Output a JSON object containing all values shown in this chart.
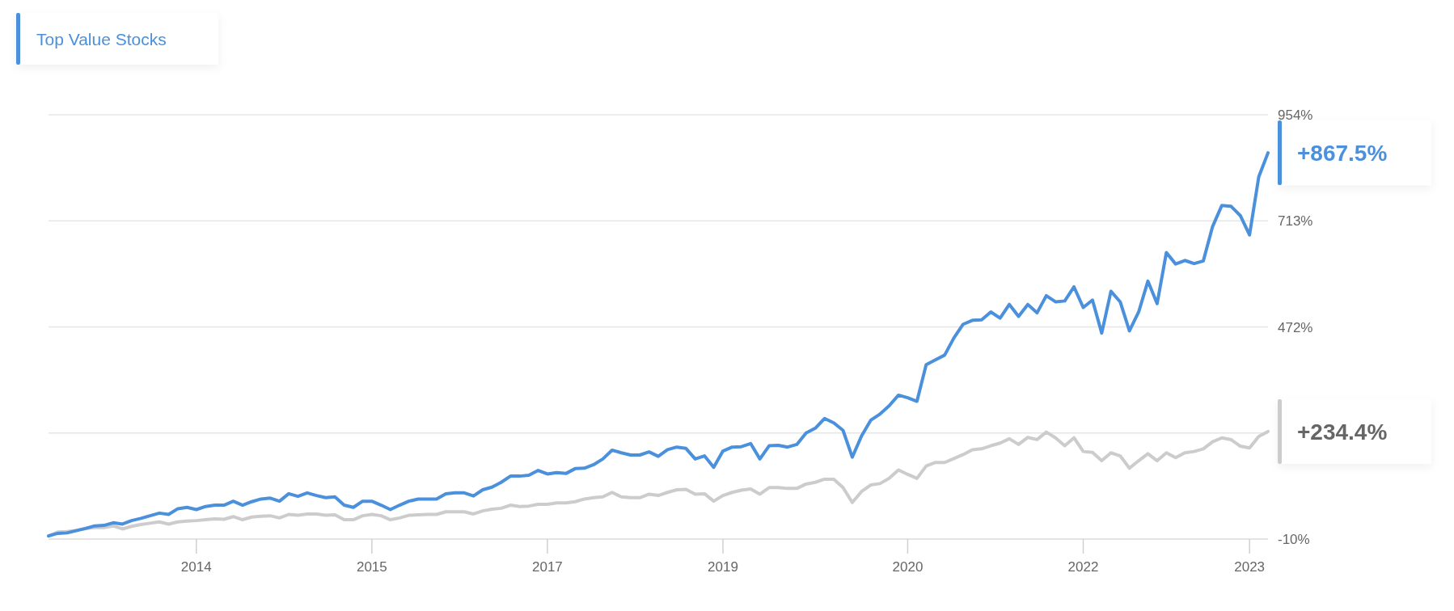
{
  "chart_data": {
    "type": "line",
    "categories": [
      null,
      null,
      null,
      null,
      null,
      null,
      null,
      null,
      null,
      null,
      null,
      null,
      null,
      null,
      null,
      null,
      "2014",
      null,
      null,
      null,
      null,
      null,
      null,
      null,
      null,
      null,
      null,
      null,
      null,
      null,
      null,
      null,
      null,
      null,
      null,
      "2015",
      null,
      null,
      null,
      null,
      null,
      null,
      null,
      null,
      null,
      null,
      null,
      null,
      null,
      null,
      null,
      null,
      null,
      null,
      "2017",
      null,
      null,
      null,
      null,
      null,
      null,
      null,
      null,
      null,
      null,
      null,
      null,
      null,
      null,
      null,
      null,
      null,
      null,
      "2019",
      null,
      null,
      null,
      null,
      null,
      null,
      null,
      null,
      null,
      null,
      null,
      null,
      null,
      null,
      null,
      null,
      null,
      null,
      null,
      "2020",
      null,
      null,
      null,
      null,
      null,
      null,
      null,
      null,
      null,
      null,
      null,
      null,
      null,
      null,
      null,
      null,
      null,
      null,
      "2022",
      null,
      null,
      null,
      null,
      null,
      null,
      null,
      null,
      null,
      null,
      null,
      null,
      null,
      null,
      null,
      null,
      null,
      "2023",
      null,
      null
    ],
    "series": [
      {
        "color": "#cccccc",
        "values": [
          -3,
          6,
          7,
          10,
          14,
          16,
          16,
          20,
          13,
          19,
          23,
          26,
          29,
          24,
          29,
          31,
          32,
          34,
          36,
          35,
          41,
          34,
          40,
          42,
          43,
          38,
          46,
          44,
          47,
          47,
          44,
          45,
          34,
          34,
          43,
          46,
          43,
          34,
          38,
          44,
          45,
          46,
          46,
          52,
          52,
          52,
          47,
          54,
          58,
          60,
          67,
          64,
          65,
          69,
          69,
          72,
          72,
          75,
          81,
          84,
          86,
          96,
          86,
          84,
          84,
          92,
          89,
          96,
          102,
          103,
          92,
          93,
          76,
          89,
          96,
          101,
          104,
          92,
          107,
          107,
          105,
          105,
          115,
          119,
          126,
          126,
          107,
          73,
          98,
          113,
          116,
          128,
          147,
          137,
          128,
          156,
          164,
          164,
          173,
          182,
          193,
          195,
          202,
          208,
          218,
          205,
          221,
          216,
          233,
          220,
          202,
          220,
          189,
          187,
          168,
          186,
          179,
          151,
          168,
          184,
          168,
          186,
          175,
          186,
          189,
          195,
          211,
          220,
          216,
          201,
          197,
          223,
          234.4
        ]
      },
      {
        "name": "Top Value Stocks",
        "color": "#4a90dc",
        "values": [
          -3,
          3,
          4,
          9,
          14,
          20,
          21,
          27,
          24,
          32,
          37,
          43,
          49,
          46,
          59,
          62,
          57,
          64,
          67,
          67,
          76,
          67,
          75,
          81,
          83,
          76,
          93,
          87,
          95,
          89,
          84,
          86,
          67,
          62,
          76,
          76,
          67,
          57,
          67,
          76,
          81,
          81,
          81,
          93,
          95,
          95,
          88,
          102,
          108,
          119,
          133,
          133,
          135,
          146,
          138,
          141,
          139,
          150,
          151,
          159,
          172,
          192,
          186,
          181,
          181,
          188,
          178,
          193,
          199,
          196,
          172,
          179,
          153,
          190,
          199,
          200,
          207,
          172,
          202,
          203,
          199,
          205,
          231,
          242,
          264,
          254,
          237,
          176,
          224,
          260,
          274,
          293,
          317,
          311,
          303,
          386,
          397,
          408,
          447,
          478,
          487,
          488,
          506,
          492,
          523,
          496,
          523,
          504,
          543,
          529,
          531,
          563,
          516,
          533,
          458,
          553,
          529,
          463,
          506,
          576,
          525,
          641,
          615,
          623,
          616,
          622,
          700,
          748,
          746,
          725,
          681,
          813,
          867.5
        ]
      }
    ],
    "ylim": [
      -10,
      954
    ],
    "yticks": [
      {
        "value": -10,
        "label": "-10%"
      },
      {
        "value": 231,
        "label": null
      },
      {
        "value": 472,
        "label": "472%"
      },
      {
        "value": 713,
        "label": "713%"
      },
      {
        "value": 954,
        "label": "954%"
      }
    ],
    "grid": "y",
    "legend": "top left",
    "annotations": [
      "+867.5%",
      "+234.4%"
    ]
  }
}
